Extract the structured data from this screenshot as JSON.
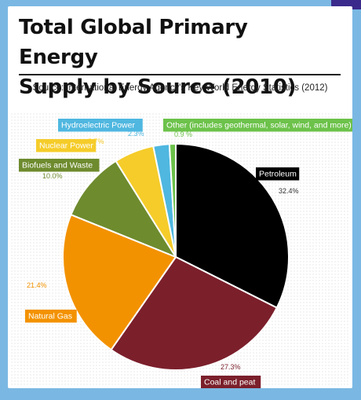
{
  "title_line1": "Total Global Primary Energy",
  "title_line2": "Supply by Source (2010)",
  "source": "Source: International Energy Agency's Key World Energy Statistics (2012)",
  "chart_data": {
    "type": "pie",
    "title": "Total Global Primary Energy Supply by Source (2010)",
    "unit": "%",
    "slices": [
      {
        "name": "Petroleum",
        "value": 32.4,
        "label": "32.4%",
        "color": "#000000",
        "tag_bg": "#000000",
        "tag_fg": "#ffffff"
      },
      {
        "name": "Coal and peat",
        "value": 27.3,
        "label": "27.3%",
        "color": "#7b1f2b",
        "tag_bg": "#7b1f2b",
        "tag_fg": "#ffffff"
      },
      {
        "name": "Natural Gas",
        "value": 21.4,
        "label": "21.4%",
        "color": "#f39200",
        "tag_bg": "#f39200",
        "tag_fg": "#ffffff"
      },
      {
        "name": "Biofuels and Waste",
        "value": 10.0,
        "label": "10.0%",
        "color": "#6e8b2e",
        "tag_bg": "#6e8b2e",
        "tag_fg": "#ffffff"
      },
      {
        "name": "Nuclear Power",
        "value": 5.7,
        "label": "5.7%",
        "color": "#f5cc2a",
        "tag_bg": "#f5cc2a",
        "tag_fg": "#ffffff"
      },
      {
        "name": "Hydroelectric Power",
        "value": 2.3,
        "label": "2.3%",
        "color": "#4fb7e0",
        "tag_bg": "#4fb7e0",
        "tag_fg": "#ffffff"
      },
      {
        "name": "Other (includes geothermal, solar, wind, and more)",
        "value": 0.9,
        "label": "0.9 %",
        "color": "#6cc24a",
        "tag_bg": "#6cc24a",
        "tag_fg": "#ffffff"
      }
    ]
  }
}
